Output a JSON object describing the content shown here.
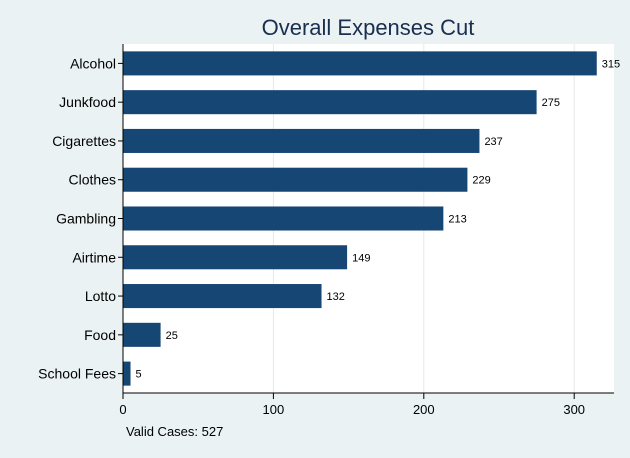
{
  "chart_data": {
    "type": "bar",
    "orientation": "horizontal",
    "title": "Overall Expenses Cut",
    "categories": [
      "Alcohol",
      "Junkfood",
      "Cigarettes",
      "Clothes",
      "Gambling",
      "Airtime",
      "Lotto",
      "Food",
      "School Fees"
    ],
    "values": [
      315,
      275,
      237,
      229,
      213,
      149,
      132,
      25,
      5
    ],
    "xticks": [
      0,
      100,
      200,
      300
    ],
    "xlim": [
      0,
      325
    ],
    "grid": true,
    "data_labels": true,
    "bar_color": "#164674",
    "note": "Valid Cases: 527"
  }
}
